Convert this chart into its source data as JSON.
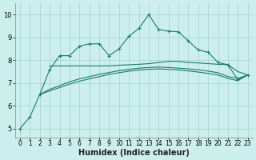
{
  "background_color": "#cceeed",
  "grid_color": "#aad8d4",
  "line_color": "#1a7a6e",
  "xlabel": "Humidex (Indice chaleur)",
  "xlabel_fontsize": 7,
  "tick_fontsize": 5.5,
  "xlim": [
    -0.5,
    23.5
  ],
  "ylim": [
    4.6,
    10.5
  ],
  "yticks": [
    5,
    6,
    7,
    8,
    9,
    10
  ],
  "xticks": [
    0,
    1,
    2,
    3,
    4,
    5,
    6,
    7,
    8,
    9,
    10,
    11,
    12,
    13,
    14,
    15,
    16,
    17,
    18,
    19,
    20,
    21,
    22,
    23
  ],
  "series": {
    "main": {
      "x": [
        0,
        1,
        2,
        3,
        4,
        5,
        6,
        7,
        8,
        9,
        10,
        11,
        12,
        13,
        14,
        15,
        16,
        17,
        18,
        19,
        20,
        21,
        22,
        23
      ],
      "y": [
        5.0,
        5.5,
        6.5,
        7.6,
        8.2,
        8.2,
        8.62,
        8.72,
        8.72,
        8.2,
        8.5,
        9.05,
        9.4,
        10.0,
        9.35,
        9.28,
        9.25,
        8.85,
        8.45,
        8.35,
        7.9,
        7.8,
        7.15,
        7.35
      ]
    },
    "line1": {
      "x": [
        3,
        4,
        5,
        6,
        7,
        8,
        9,
        10,
        11,
        12,
        13,
        14,
        15,
        16,
        17,
        18,
        19,
        20,
        21,
        22,
        23
      ],
      "y": [
        7.75,
        7.75,
        7.75,
        7.75,
        7.75,
        7.75,
        7.75,
        7.78,
        7.8,
        7.82,
        7.85,
        7.9,
        7.95,
        7.95,
        7.9,
        7.88,
        7.85,
        7.82,
        7.8,
        7.5,
        7.35
      ]
    },
    "line2": {
      "x": [
        2,
        3,
        4,
        5,
        6,
        7,
        8,
        9,
        10,
        11,
        12,
        13,
        14,
        15,
        16,
        17,
        18,
        19,
        20,
        21,
        22,
        23
      ],
      "y": [
        6.5,
        6.72,
        6.88,
        7.05,
        7.18,
        7.28,
        7.38,
        7.46,
        7.54,
        7.6,
        7.65,
        7.68,
        7.7,
        7.68,
        7.65,
        7.62,
        7.58,
        7.52,
        7.45,
        7.28,
        7.2,
        7.35
      ]
    },
    "line3": {
      "x": [
        2,
        3,
        4,
        5,
        6,
        7,
        8,
        9,
        10,
        11,
        12,
        13,
        14,
        15,
        16,
        17,
        18,
        19,
        20,
        21,
        22,
        23
      ],
      "y": [
        6.5,
        6.65,
        6.8,
        6.95,
        7.08,
        7.18,
        7.28,
        7.38,
        7.45,
        7.52,
        7.57,
        7.6,
        7.62,
        7.6,
        7.57,
        7.53,
        7.48,
        7.42,
        7.35,
        7.2,
        7.1,
        7.35
      ]
    }
  }
}
